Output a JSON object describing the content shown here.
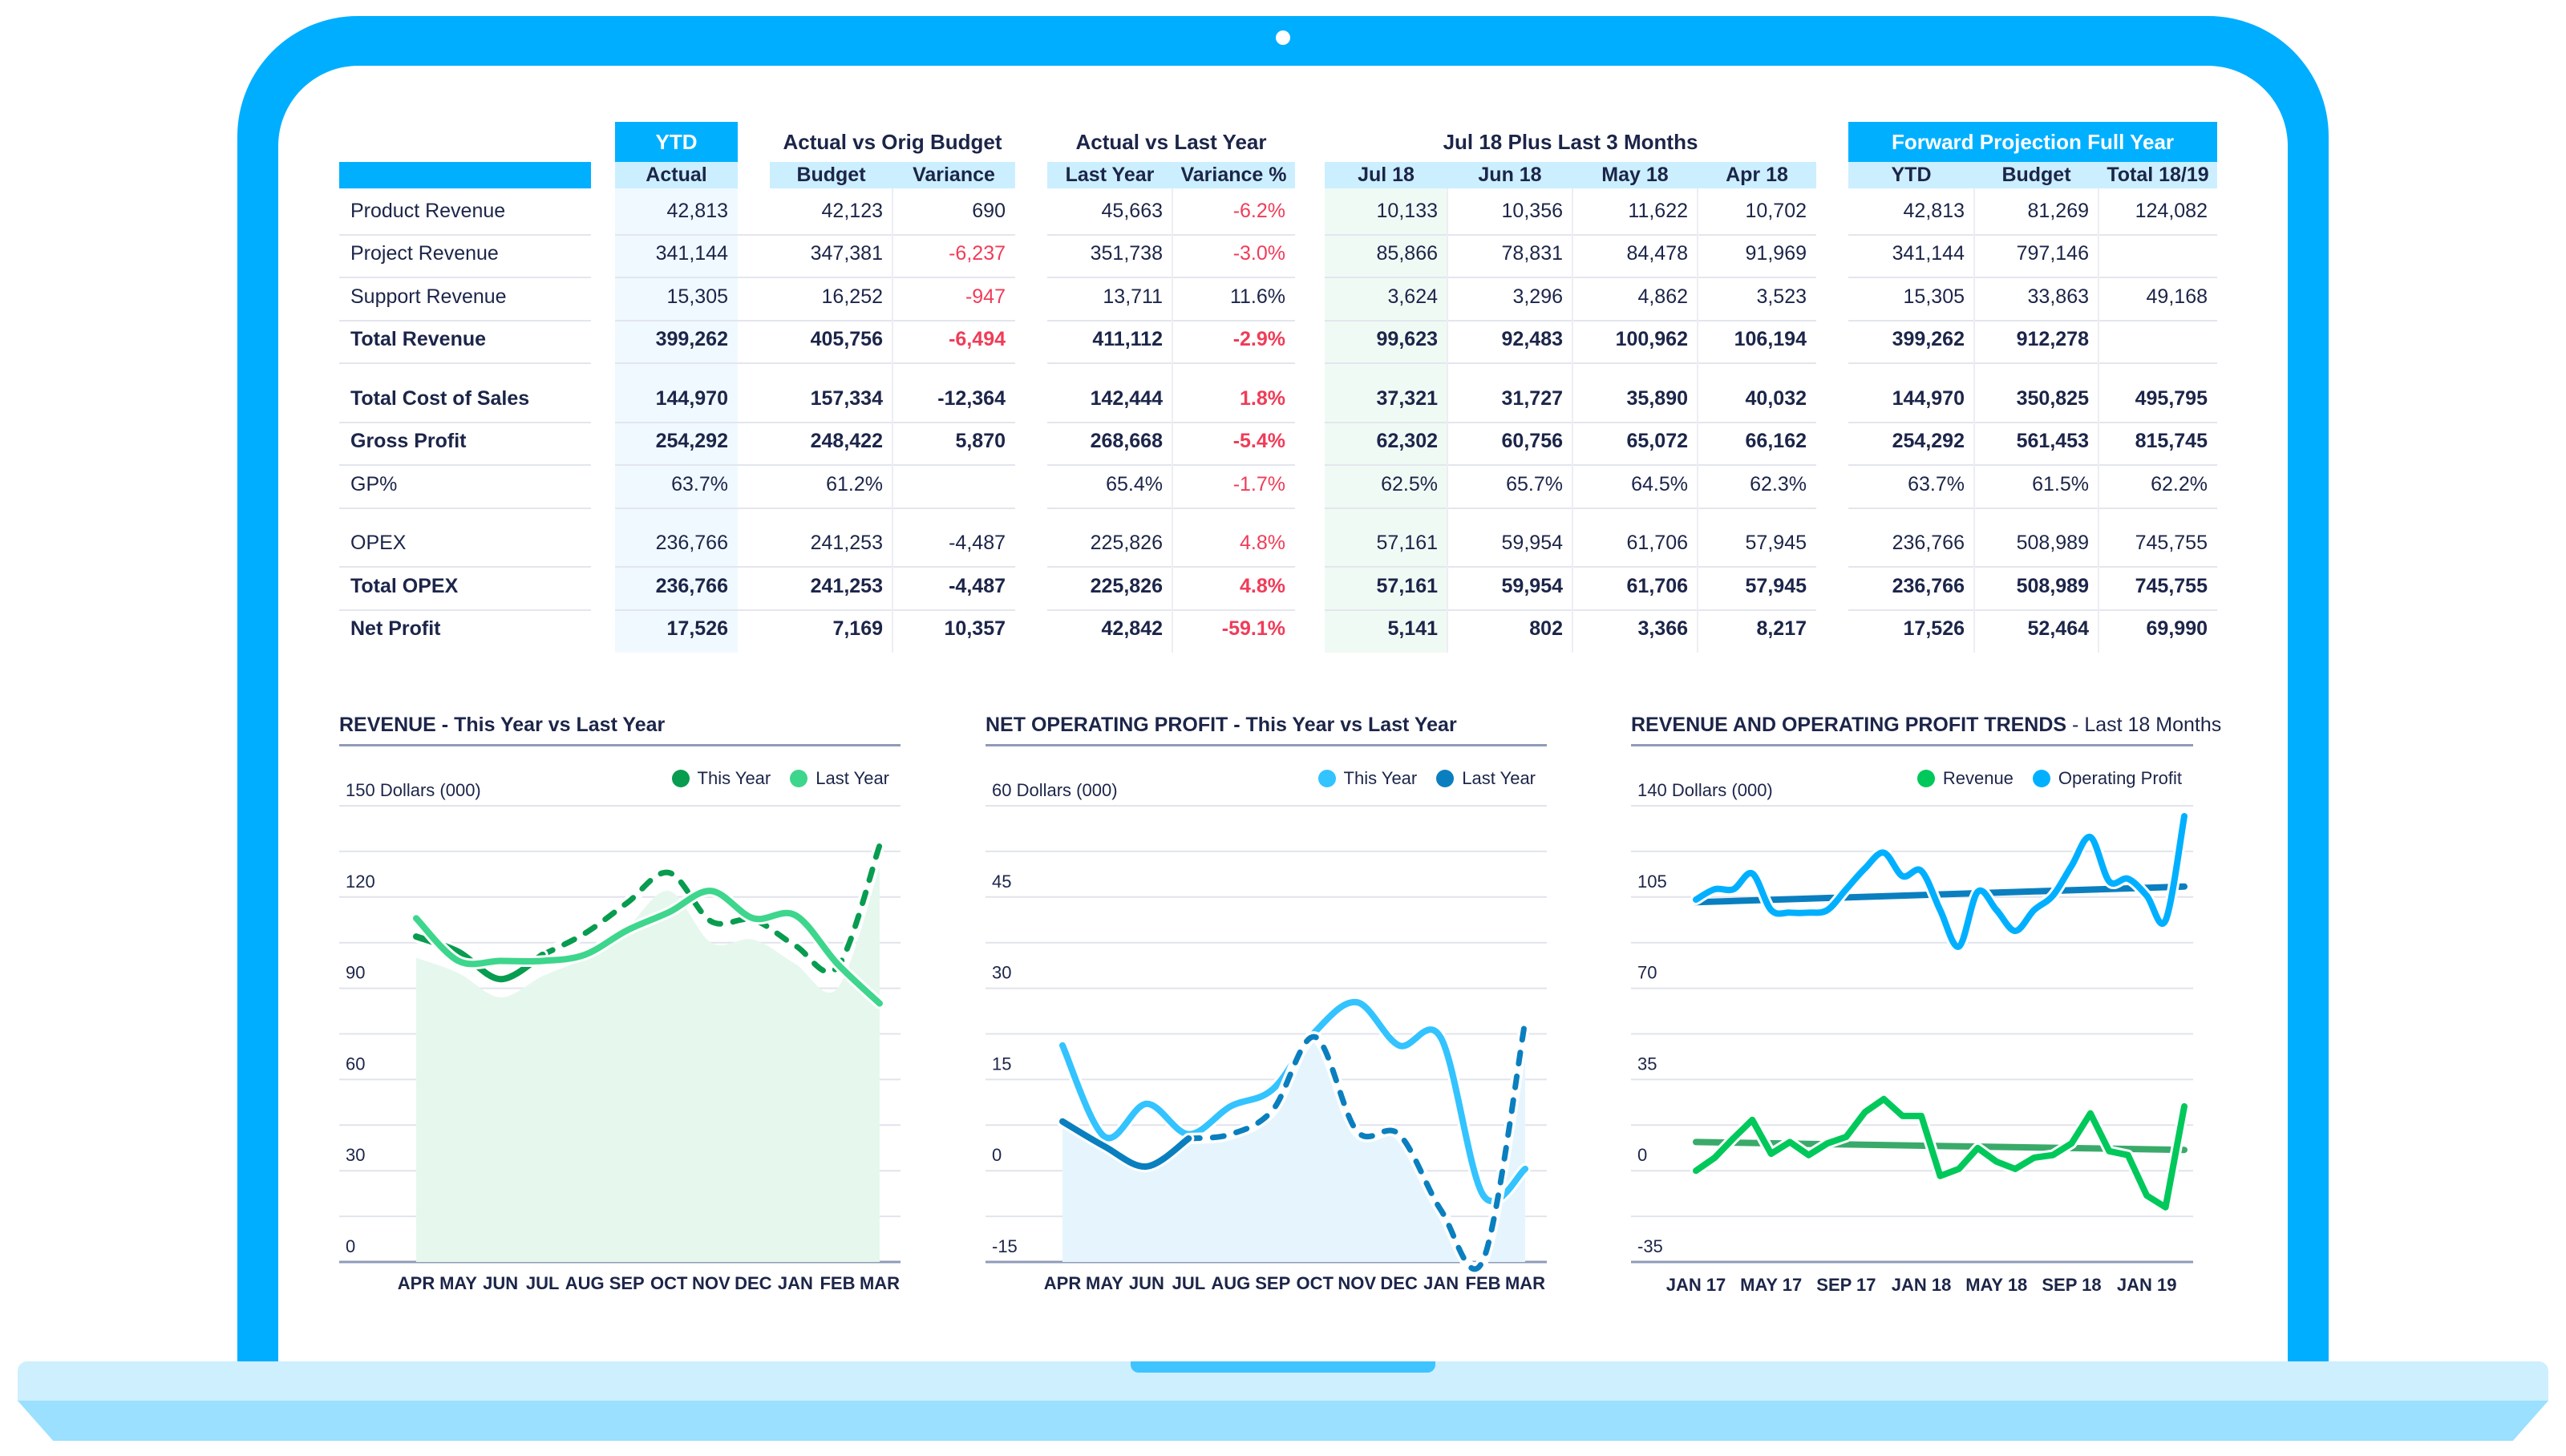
{
  "colors": {
    "frame": "#00aeff",
    "accent": "#00b0ff",
    "header_bg": "#ccefff",
    "negative": "#f03c58",
    "text": "#1c2549"
  },
  "table": {
    "groups": [
      {
        "label": "",
        "highlight": false
      },
      {
        "label": "YTD",
        "highlight": true
      },
      {
        "label": "Actual vs Orig Budget",
        "highlight": false
      },
      {
        "label": "Actual vs Last Year",
        "highlight": false
      },
      {
        "label": "Jul 18 Plus Last 3 Months",
        "highlight": false
      },
      {
        "label": "Forward Projection Full Year",
        "highlight": true
      }
    ],
    "columns": [
      "Actual",
      "Budget",
      "Variance",
      "Last Year",
      "Variance %",
      "Jul 18",
      "Jun 18",
      "May 18",
      "Apr 18",
      "YTD",
      "Budget",
      "Total 18/19"
    ],
    "rows": [
      {
        "label": "Product Revenue",
        "bold": false,
        "values": [
          "42,813",
          "42,123",
          "690",
          "45,663",
          "-6.2%",
          "10,133",
          "10,356",
          "11,622",
          "10,702",
          "42,813",
          "81,269",
          "124,082"
        ],
        "negative_cols": [
          4
        ]
      },
      {
        "label": "Project Revenue",
        "bold": false,
        "values": [
          "341,144",
          "347,381",
          "-6,237",
          "351,738",
          "-3.0%",
          "85,866",
          "78,831",
          "84,478",
          "91,969",
          "341,144",
          "797,146",
          ""
        ],
        "negative_cols": [
          2,
          4
        ]
      },
      {
        "label": "Support Revenue",
        "bold": false,
        "values": [
          "15,305",
          "16,252",
          "-947",
          "13,711",
          "11.6%",
          "3,624",
          "3,296",
          "4,862",
          "3,523",
          "15,305",
          "33,863",
          "49,168"
        ],
        "negative_cols": [
          2
        ]
      },
      {
        "label": "Total Revenue",
        "bold": true,
        "values": [
          "399,262",
          "405,756",
          "-6,494",
          "411,112",
          "-2.9%",
          "99,623",
          "92,483",
          "100,962",
          "106,194",
          "399,262",
          "912,278",
          ""
        ],
        "negative_cols": [
          2,
          4
        ]
      },
      {
        "label": "Total Cost of Sales",
        "bold": true,
        "values": [
          "144,970",
          "157,334",
          "-12,364",
          "142,444",
          "1.8%",
          "37,321",
          "31,727",
          "35,890",
          "40,032",
          "144,970",
          "350,825",
          "495,795"
        ],
        "negative_cols": [
          4
        ]
      },
      {
        "label": "Gross Profit",
        "bold": true,
        "values": [
          "254,292",
          "248,422",
          "5,870",
          "268,668",
          "-5.4%",
          "62,302",
          "60,756",
          "65,072",
          "66,162",
          "254,292",
          "561,453",
          "815,745"
        ],
        "negative_cols": [
          4
        ]
      },
      {
        "label": "GP%",
        "bold": false,
        "values": [
          "63.7%",
          "61.2%",
          "",
          "65.4%",
          "-1.7%",
          "62.5%",
          "65.7%",
          "64.5%",
          "62.3%",
          "63.7%",
          "61.5%",
          "62.2%"
        ],
        "negative_cols": [
          4
        ]
      },
      {
        "label": "OPEX",
        "bold": false,
        "values": [
          "236,766",
          "241,253",
          "-4,487",
          "225,826",
          "4.8%",
          "57,161",
          "59,954",
          "61,706",
          "57,945",
          "236,766",
          "508,989",
          "745,755"
        ],
        "negative_cols": [
          4
        ]
      },
      {
        "label": "Total OPEX",
        "bold": true,
        "values": [
          "236,766",
          "241,253",
          "-4,487",
          "225,826",
          "4.8%",
          "57,161",
          "59,954",
          "61,706",
          "57,945",
          "236,766",
          "508,989",
          "745,755"
        ],
        "negative_cols": [
          4
        ]
      },
      {
        "label": "Net Profit",
        "bold": true,
        "values": [
          "17,526",
          "7,169",
          "10,357",
          "42,842",
          "-59.1%",
          "5,141",
          "802",
          "3,366",
          "8,217",
          "17,526",
          "52,464",
          "69,990"
        ],
        "negative_cols": [
          4
        ]
      }
    ]
  },
  "chart_data": [
    {
      "type": "line",
      "title": "REVENUE - This Year vs Last Year",
      "subtitle": "",
      "ylabel": "Dollars (000)",
      "ylim": [
        0,
        150
      ],
      "ytick_step": 30,
      "grid": true,
      "legend_placement": "top-right",
      "categories": [
        "APR",
        "MAY",
        "JUN",
        "JUL",
        "AUG",
        "SEP",
        "OCT",
        "NOV",
        "DEC",
        "JAN",
        "FEB",
        "MAR"
      ],
      "series": [
        {
          "name": "This Year",
          "color": "#079c4f",
          "values": [
            107,
            102,
            93,
            101,
            108,
            118,
            128,
            112,
            112.5,
            104,
            97,
            137
          ],
          "solid_through": "JUL",
          "rest": "dashed"
        },
        {
          "name": "Last Year",
          "color": "#3dd68c",
          "values": [
            113,
            99,
            99,
            99,
            101,
            109,
            115,
            122,
            113,
            114,
            98,
            85
          ]
        }
      ],
      "area": {
        "color": "#e6f7ee",
        "values": [
          100,
          95,
          87,
          94,
          100,
          110,
          122,
          105,
          106,
          98,
          90,
          130
        ]
      }
    },
    {
      "type": "line",
      "title": "NET OPERATING PROFIT - This Year vs Last Year",
      "subtitle": "",
      "ylabel": "Dollars (000)",
      "ylim": [
        -15,
        60
      ],
      "ytick_step": 15,
      "grid": true,
      "legend_placement": "top-right",
      "categories": [
        "APR",
        "MAY",
        "JUN",
        "JUL",
        "AUG",
        "SEP",
        "OCT",
        "NOV",
        "DEC",
        "JAN",
        "FEB",
        "MAR"
      ],
      "series": [
        {
          "name": "This Year",
          "color": "#33c3ff",
          "values": [
            20.6,
            5.6,
            11,
            6,
            10.6,
            13.4,
            22.8,
            27.7,
            20.6,
            21.8,
            -4,
            0.3
          ]
        },
        {
          "name": "Last Year",
          "color": "#0a7fbf",
          "values": [
            8.1,
            4,
            0.7,
            5.3,
            6,
            10,
            22,
            6.5,
            6,
            -6.5,
            -14.7,
            24.6
          ],
          "solid_through": "JUL",
          "rest": "dashed"
        }
      ],
      "area": {
        "color": "#e6f5fd",
        "values": [
          8,
          4,
          1,
          5.5,
          6,
          10,
          22,
          6.5,
          6,
          -6.5,
          -15,
          24
        ]
      }
    },
    {
      "type": "line",
      "title": "REVENUE AND OPERATING PROFIT TRENDS",
      "subtitle": "Last 18 Months",
      "ylabel": "Dollars (000)",
      "ylim": [
        -35,
        140
      ],
      "ytick_step": 35,
      "grid": true,
      "legend_placement": "top-right",
      "x_tick_labels": [
        "JAN 17",
        "MAY 17",
        "SEP 17",
        "JAN 18",
        "MAY 18",
        "SEP 18",
        "JAN 19"
      ],
      "x_tick_every": 4,
      "series": [
        {
          "name": "Revenue",
          "color": "#00c85a",
          "values": [
            0,
            5,
            12.5,
            19.5,
            6.5,
            11,
            6,
            10.5,
            13,
            22.5,
            27.5,
            21,
            21,
            -2,
            0.7,
            8.7,
            3.5,
            0.7,
            5,
            6,
            10.5,
            22,
            7.5,
            6,
            -9.5,
            -14,
            24.7
          ],
          "trend": [
            11,
            8
          ],
          "trend_color": "#3aaa6a"
        },
        {
          "name": "Operating Profit",
          "color": "#00b0ff",
          "values": [
            104,
            108,
            108,
            114,
            100,
            99,
            99,
            100,
            108,
            116,
            122,
            113,
            115,
            100,
            86,
            107,
            100,
            92,
            100,
            105.5,
            117,
            128,
            111,
            112,
            105.5,
            96,
            136
          ],
          "trend": [
            103,
            109
          ],
          "trend_color": "#0a7fc0"
        }
      ]
    }
  ]
}
